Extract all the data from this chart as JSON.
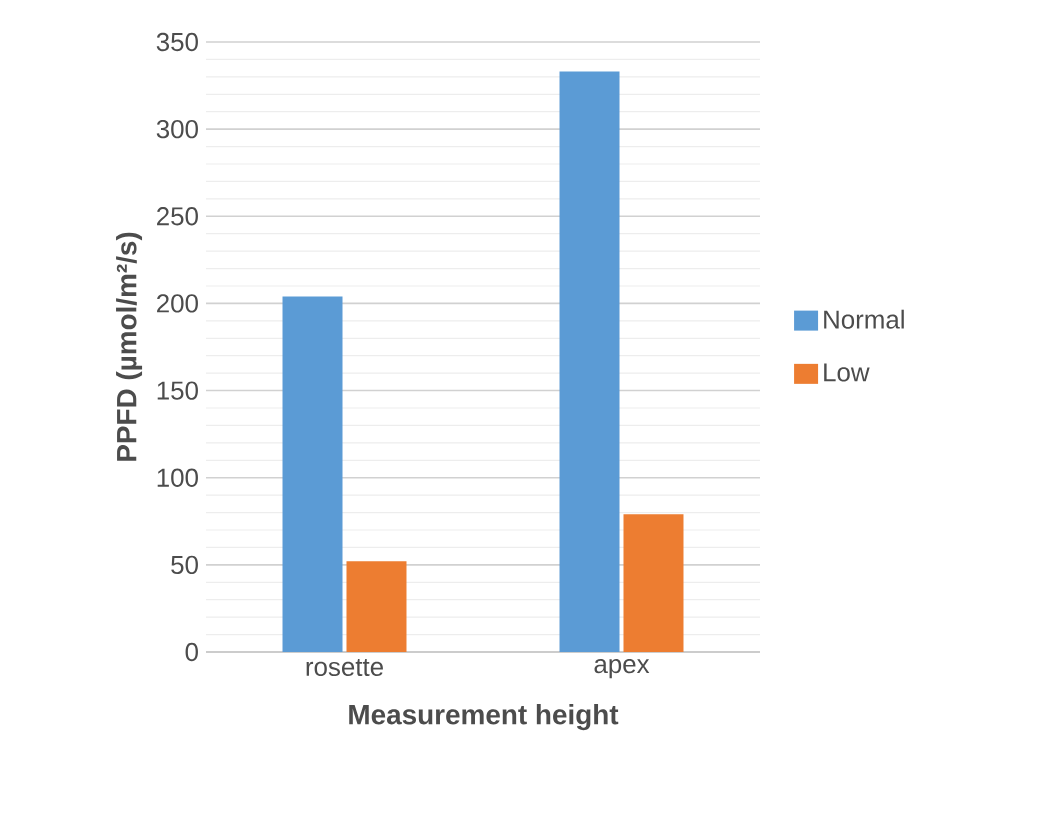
{
  "chart_data": {
    "type": "bar",
    "xlabel": "Measurement height",
    "ylabel": "PPFD (µmol/m²/s)",
    "categories": [
      "rosette",
      "apex"
    ],
    "series": [
      {
        "name": "Normal",
        "color": "#5b9bd5",
        "values": [
          204,
          333
        ]
      },
      {
        "name": "Low",
        "color": "#ed7d31",
        "values": [
          52,
          79
        ]
      }
    ],
    "ylim": [
      0,
      350
    ],
    "yticks": [
      0,
      50,
      100,
      150,
      200,
      250,
      300,
      350
    ],
    "grid": "y",
    "legend": "right"
  }
}
